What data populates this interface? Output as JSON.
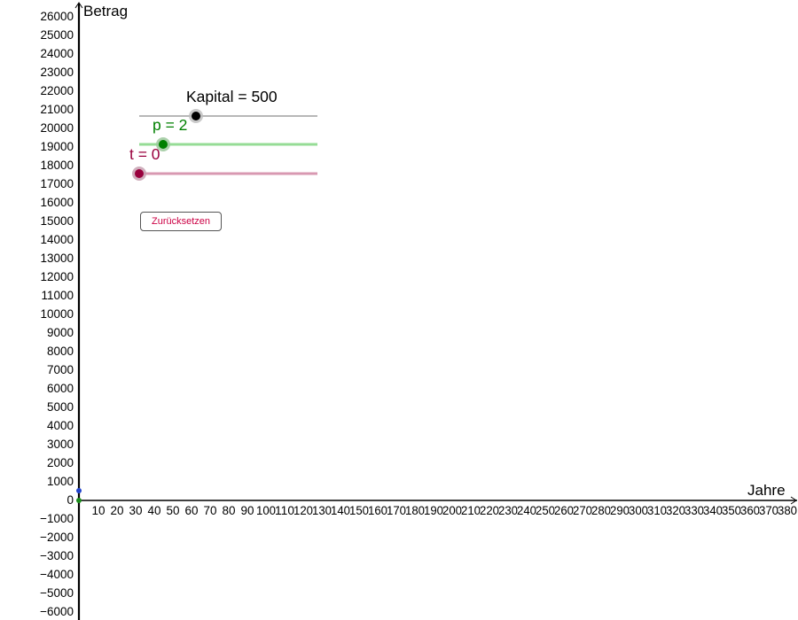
{
  "axes": {
    "x_label": "Jahre",
    "y_label": "Betrag",
    "x_ticks": [
      "10",
      "20",
      "30",
      "40",
      "50",
      "60",
      "70",
      "80",
      "90",
      "100",
      "110",
      "120",
      "130",
      "140",
      "150",
      "160",
      "170",
      "180",
      "190",
      "200",
      "210",
      "220",
      "230",
      "240",
      "250",
      "260",
      "270",
      "280",
      "290",
      "300",
      "310",
      "320",
      "330",
      "340",
      "350",
      "360",
      "370",
      "380"
    ],
    "y_ticks": [
      "26000",
      "25000",
      "24000",
      "23000",
      "22000",
      "21000",
      "20000",
      "19000",
      "18000",
      "17000",
      "16000",
      "15000",
      "14000",
      "13000",
      "12000",
      "11000",
      "10000",
      "9000",
      "8000",
      "7000",
      "6000",
      "5000",
      "4000",
      "3000",
      "2000",
      "1000",
      "0",
      "−1000",
      "−2000",
      "−3000",
      "−4000",
      "−5000",
      "−6000"
    ]
  },
  "sliders": {
    "kapital": {
      "caption": "Kapital = 500",
      "color": "#000000",
      "line_color": "#8c8c8c"
    },
    "p": {
      "caption": "p = 2",
      "color": "#008000",
      "line_color": "#96dc96"
    },
    "t": {
      "caption": "t = 0",
      "color": "#99003d",
      "line_color": "#d898b1"
    }
  },
  "reset_button": {
    "label": "Zurücksetzen",
    "color": "#cc0044"
  },
  "points": [
    {
      "name": "blue-point",
      "color": "#2244cc"
    },
    {
      "name": "green-point",
      "color": "#1a8c1a"
    }
  ]
}
